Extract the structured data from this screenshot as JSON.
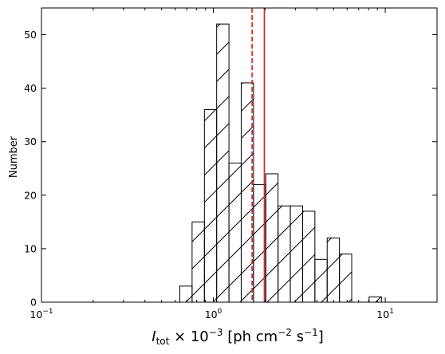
{
  "chart_data": {
    "type": "histogram",
    "x_scale": "log",
    "xlim": [
      0.1,
      20
    ],
    "ylim": [
      0,
      55
    ],
    "xlabel": "I_tot × 10^-3 [ph cm^-2 s^-1]",
    "ylabel": "Number",
    "x_ticks": [
      {
        "value": 0.1,
        "base": "10",
        "exp": "−1"
      },
      {
        "value": 1,
        "base": "10",
        "exp": "0"
      },
      {
        "value": 10,
        "base": "10",
        "exp": "1"
      }
    ],
    "y_ticks": [
      0,
      10,
      20,
      30,
      40,
      50
    ],
    "bins": [
      {
        "x0": 0.638,
        "x1": 0.752,
        "count": 3
      },
      {
        "x0": 0.752,
        "x1": 0.887,
        "count": 15
      },
      {
        "x0": 0.887,
        "x1": 1.045,
        "count": 36
      },
      {
        "x0": 1.045,
        "x1": 1.232,
        "count": 52
      },
      {
        "x0": 1.232,
        "x1": 1.452,
        "count": 26
      },
      {
        "x0": 1.452,
        "x1": 1.712,
        "count": 41
      },
      {
        "x0": 1.712,
        "x1": 2.018,
        "count": 22
      },
      {
        "x0": 2.018,
        "x1": 2.378,
        "count": 24
      },
      {
        "x0": 2.378,
        "x1": 2.803,
        "count": 18
      },
      {
        "x0": 2.803,
        "x1": 3.304,
        "count": 18
      },
      {
        "x0": 3.304,
        "x1": 3.895,
        "count": 17
      },
      {
        "x0": 3.895,
        "x1": 4.591,
        "count": 8
      },
      {
        "x0": 4.591,
        "x1": 5.412,
        "count": 12
      },
      {
        "x0": 5.412,
        "x1": 6.379,
        "count": 9
      },
      {
        "x0": 8.05,
        "x1": 9.5,
        "count": 1
      }
    ],
    "vlines": [
      {
        "x": 1.68,
        "color": "#d62728",
        "style": "dashed"
      },
      {
        "x": 1.98,
        "color": "#d62728",
        "style": "solid"
      }
    ],
    "bar_fill": "#ffffff",
    "bar_edge": "#000000",
    "hatch": "/"
  }
}
